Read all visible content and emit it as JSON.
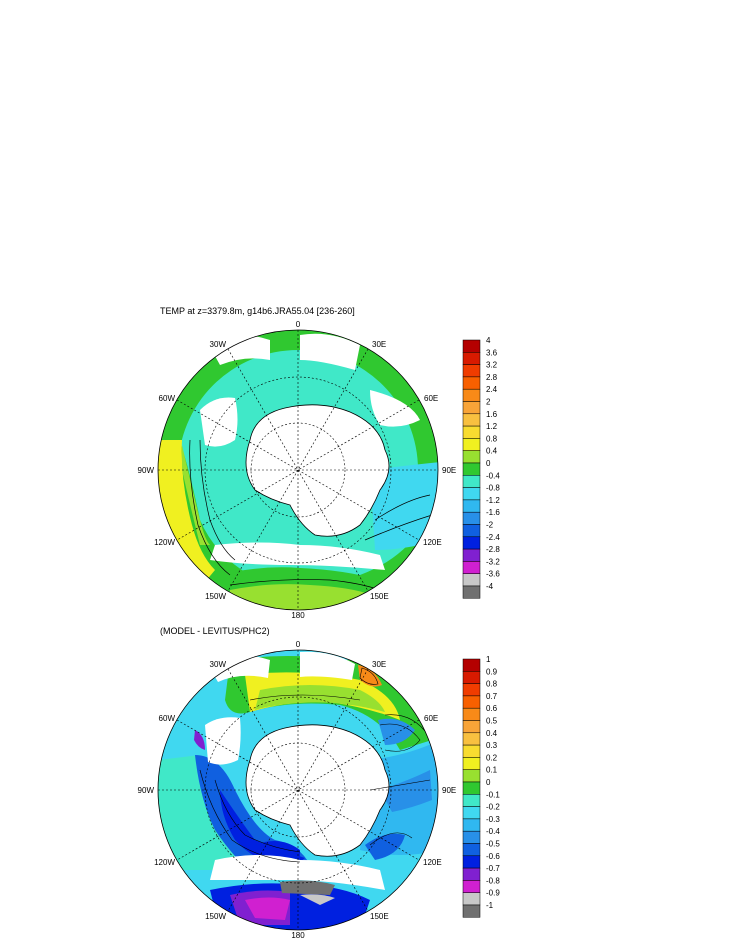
{
  "top_panel": {
    "title": "TEMP at z=3379.8m, g14b6.JRA55.04 [236-260]",
    "longitude_labels": [
      "0",
      "30E",
      "60E",
      "90E",
      "120E",
      "150E",
      "180",
      "150W",
      "120W",
      "90W",
      "60W",
      "30W"
    ],
    "colorbar": {
      "labels": [
        "4",
        "3.6",
        "3.2",
        "2.8",
        "2.4",
        "2",
        "1.6",
        "1.2",
        "0.8",
        "0.4",
        "0",
        "-0.4",
        "-0.8",
        "-1.2",
        "-1.6",
        "-2",
        "-2.4",
        "-2.8",
        "-3.2",
        "-3.6",
        "-4"
      ],
      "colors": [
        "#b40000",
        "#d81a00",
        "#f03c00",
        "#f86000",
        "#f88a18",
        "#f8a438",
        "#f8c040",
        "#f8dc30",
        "#f0f020",
        "#98e030",
        "#30c830",
        "#40e8c8",
        "#40d8f0",
        "#30b8f0",
        "#2890e8",
        "#1060e0",
        "#0020e0",
        "#8020d0",
        "#d020d0",
        "#c8c8c8",
        "#707070"
      ]
    },
    "colors": {
      "land": "#ffffff",
      "ocean_dominant": "#40e8c8",
      "warm_band": "#30c830",
      "warmest": "#f0f020"
    }
  },
  "bottom_panel": {
    "title": "(MODEL - LEVITUS/PHC2)",
    "longitude_labels": [
      "0",
      "30E",
      "60E",
      "90E",
      "120E",
      "150E",
      "180",
      "150W",
      "120W",
      "90W",
      "60W",
      "30W"
    ],
    "colorbar": {
      "labels": [
        "1",
        "0.9",
        "0.8",
        "0.7",
        "0.6",
        "0.5",
        "0.4",
        "0.3",
        "0.2",
        "0.1",
        "0",
        "-0.1",
        "-0.2",
        "-0.3",
        "-0.4",
        "-0.5",
        "-0.6",
        "-0.7",
        "-0.8",
        "-0.9",
        "-1"
      ],
      "colors": [
        "#b40000",
        "#d81a00",
        "#f03c00",
        "#f86000",
        "#f88a18",
        "#f8a438",
        "#f8c040",
        "#f8dc30",
        "#f0f020",
        "#98e030",
        "#30c830",
        "#40e8c8",
        "#40d8f0",
        "#30b8f0",
        "#2890e8",
        "#1060e0",
        "#0020e0",
        "#8020d0",
        "#d020d0",
        "#c8c8c8",
        "#707070"
      ]
    },
    "colors": {
      "land": "#ffffff",
      "pacific_negative": "#0020e0",
      "atlantic_positive": "#f0f020",
      "indian_negative": "#2890e8"
    }
  }
}
